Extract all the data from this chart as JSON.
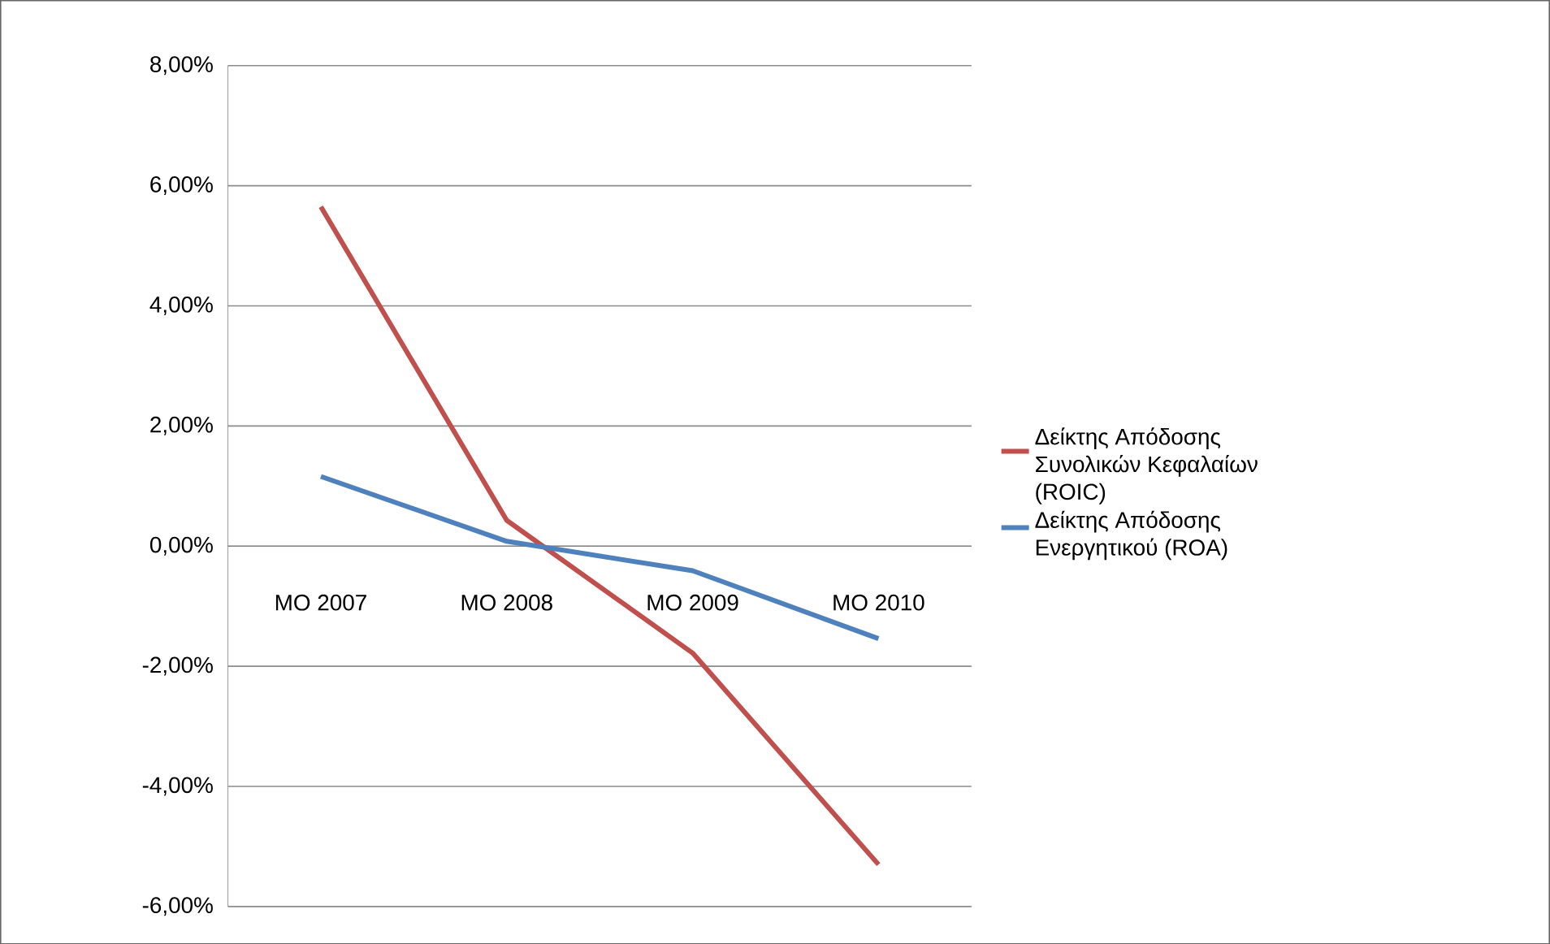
{
  "chart_data": {
    "type": "line",
    "categories": [
      "ΜΟ 2007",
      "ΜΟ 2008",
      "ΜΟ 2009",
      "ΜΟ 2010"
    ],
    "series": [
      {
        "name": "Δείκτης Απόδοσης Συνολικών Κεφαλαίων (ROIC)",
        "color": "#c0504d",
        "values": [
          5.65,
          0.43,
          -1.78,
          -5.3
        ]
      },
      {
        "name": "Δείκτης Απόδοσης Ενεργητικού (ROA)",
        "color": "#4f81bd",
        "values": [
          1.16,
          0.08,
          -0.41,
          -1.54
        ]
      }
    ],
    "ylim": [
      -6,
      8
    ],
    "yticks": [
      {
        "value": -6,
        "label": "-6,00%"
      },
      {
        "value": -4,
        "label": "-4,00%"
      },
      {
        "value": -2,
        "label": "-2,00%"
      },
      {
        "value": 0,
        "label": "0,00%"
      },
      {
        "value": 2,
        "label": "2,00%"
      },
      {
        "value": 4,
        "label": "4,00%"
      },
      {
        "value": 6,
        "label": "6,00%"
      },
      {
        "value": 8,
        "label": "8,00%"
      }
    ],
    "grid": "y",
    "legend": "right"
  }
}
